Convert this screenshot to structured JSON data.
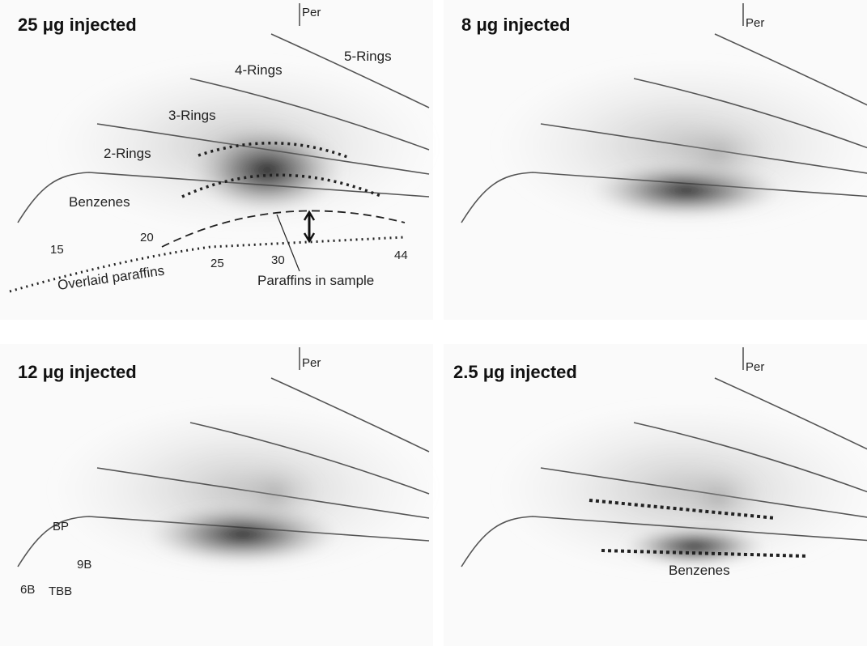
{
  "panels": [
    {
      "title": "25 μg injected",
      "peak": "Per",
      "regions": [
        "5-Rings",
        "4-Rings",
        "3-Rings",
        "2-Rings",
        "Benzenes"
      ],
      "carbon_numbers": [
        "15",
        "20",
        "25",
        "30",
        "44"
      ],
      "annotations": [
        "Overlaid paraffins",
        "Paraffins in sample"
      ]
    },
    {
      "title": "8 μg injected",
      "peak": "Per"
    },
    {
      "title": "12 μg injected",
      "peak": "Per",
      "compounds": [
        "BP",
        "9B",
        "6B",
        "TBB"
      ]
    },
    {
      "title": "2.5 μg injected",
      "peak": "Per",
      "annotations": [
        "Benzenes"
      ]
    }
  ]
}
